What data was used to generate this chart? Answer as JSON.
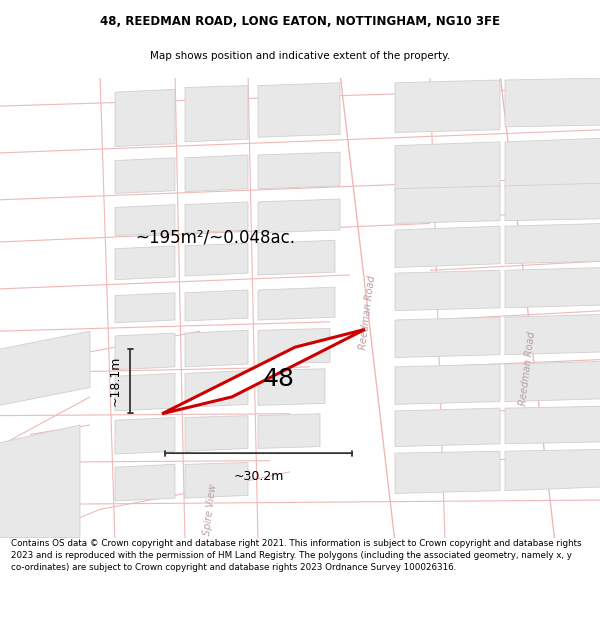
{
  "title_line1": "48, REEDMAN ROAD, LONG EATON, NOTTINGHAM, NG10 3FE",
  "title_line2": "Map shows position and indicative extent of the property.",
  "footer_text": "Contains OS data © Crown copyright and database right 2021. This information is subject to Crown copyright and database rights 2023 and is reproduced with the permission of HM Land Registry. The polygons (including the associated geometry, namely x, y co-ordinates) are subject to Crown copyright and database rights 2023 Ordnance Survey 100026316.",
  "area_label": "~195m²/~0.048ac.",
  "width_label": "~30.2m",
  "height_label": "~18.1m",
  "number_label": "48",
  "bg_white": "#ffffff",
  "map_bg": "#ffffff",
  "road_line_color": "#f0b8b8",
  "building_fill": "#e8e8e8",
  "building_edge": "#d0d0d0",
  "plot_fill": "#ffffff",
  "plot_edge": "#cc0000",
  "street_label_color": "#b8a0a0",
  "dim_line_color": "#333333"
}
